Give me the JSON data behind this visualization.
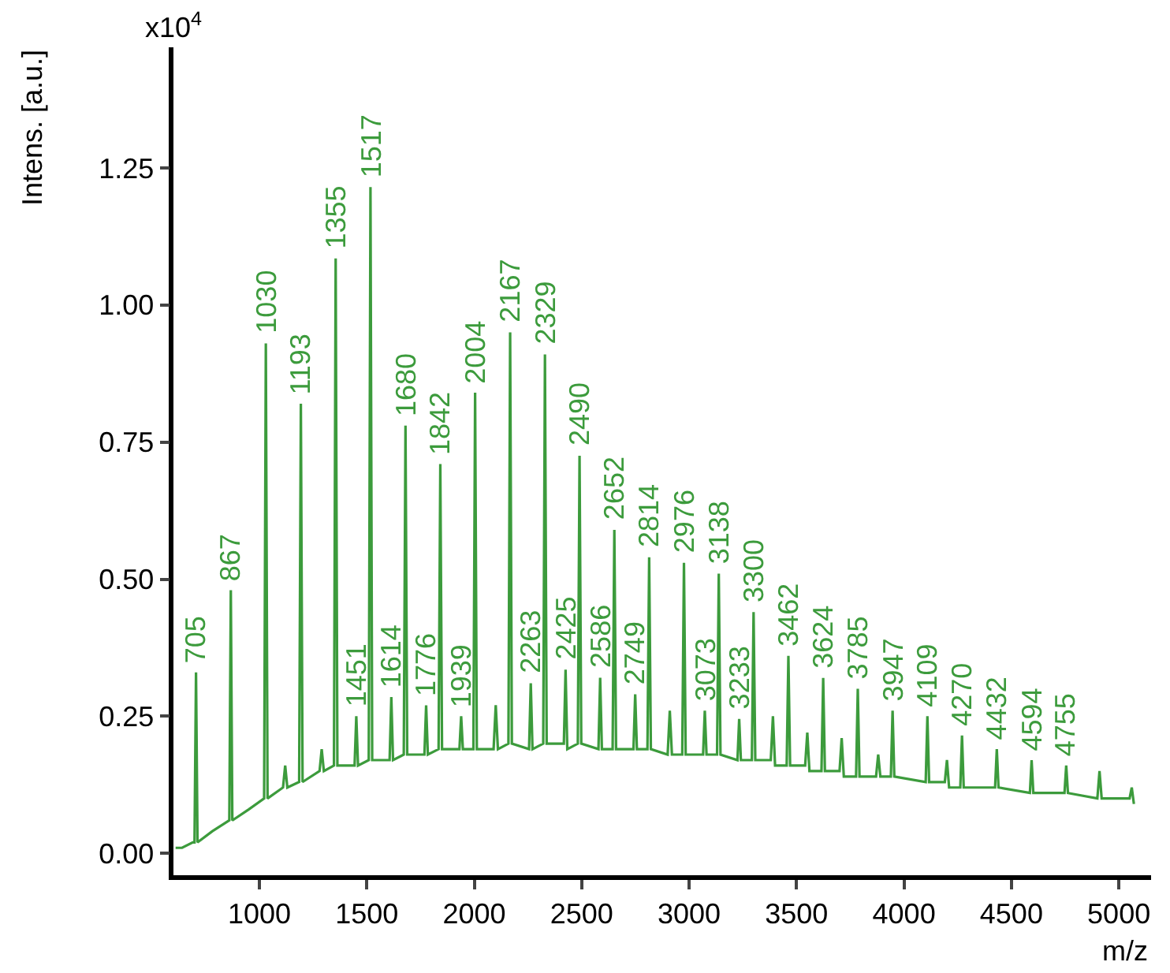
{
  "chart_data": {
    "type": "line",
    "xlabel": "m/z",
    "ylabel": "Intens. [a.u.]",
    "annotations": [
      "x10$^{4}$",
      {
        "text": "705",
        "x": 705,
        "y": 0.33
      },
      {
        "text": "867",
        "x": 867,
        "y": 0.48
      },
      {
        "text": "1030",
        "x": 1030,
        "y": 0.93
      },
      {
        "text": "1193",
        "x": 1193,
        "y": 0.82
      },
      {
        "text": "1355",
        "x": 1355,
        "y": 1.085
      },
      {
        "text": "1451",
        "x": 1451,
        "y": 0.25
      },
      {
        "text": "1517",
        "x": 1517,
        "y": 1.215
      },
      {
        "text": "1614",
        "x": 1614,
        "y": 0.285
      },
      {
        "text": "1680",
        "x": 1680,
        "y": 0.78
      },
      {
        "text": "1776",
        "x": 1776,
        "y": 0.27
      },
      {
        "text": "1842",
        "x": 1842,
        "y": 0.71
      },
      {
        "text": "1939",
        "x": 1939,
        "y": 0.25
      },
      {
        "text": "2004",
        "x": 2004,
        "y": 0.84
      },
      {
        "text": "2167",
        "x": 2167,
        "y": 0.95
      },
      {
        "text": "2263",
        "x": 2263,
        "y": 0.31
      },
      {
        "text": "2329",
        "x": 2329,
        "y": 0.91
      },
      {
        "text": "2425",
        "x": 2425,
        "y": 0.335
      },
      {
        "text": "2490",
        "x": 2490,
        "y": 0.725
      },
      {
        "text": "2586",
        "x": 2586,
        "y": 0.32
      },
      {
        "text": "2652",
        "x": 2652,
        "y": 0.59
      },
      {
        "text": "2749",
        "x": 2749,
        "y": 0.29
      },
      {
        "text": "2814",
        "x": 2814,
        "y": 0.54
      },
      {
        "text": "2976",
        "x": 2976,
        "y": 0.53
      },
      {
        "text": "3073",
        "x": 3073,
        "y": 0.26
      },
      {
        "text": "3138",
        "x": 3138,
        "y": 0.51
      },
      {
        "text": "3233",
        "x": 3233,
        "y": 0.245
      },
      {
        "text": "3300",
        "x": 3300,
        "y": 0.44
      },
      {
        "text": "3462",
        "x": 3462,
        "y": 0.36
      },
      {
        "text": "3624",
        "x": 3624,
        "y": 0.32
      },
      {
        "text": "3785",
        "x": 3785,
        "y": 0.3
      },
      {
        "text": "3947",
        "x": 3947,
        "y": 0.26
      },
      {
        "text": "4109",
        "x": 4109,
        "y": 0.25
      },
      {
        "text": "4270",
        "x": 4270,
        "y": 0.215
      },
      {
        "text": "4432",
        "x": 4432,
        "y": 0.19
      },
      {
        "text": "4594",
        "x": 4594,
        "y": 0.17
      },
      {
        "text": "4755",
        "x": 4755,
        "y": 0.16
      }
    ],
    "series": [
      {
        "color": "#3c9b3c",
        "x": [
          610,
          640,
          690,
          698,
          705,
          712,
          780,
          860,
          867,
          874,
          950,
          1022,
          1030,
          1038,
          1110,
          1120,
          1130,
          1185,
          1193,
          1201,
          1280,
          1290,
          1300,
          1347,
          1355,
          1363,
          1443,
          1451,
          1459,
          1509,
          1517,
          1525,
          1606,
          1614,
          1622,
          1672,
          1680,
          1688,
          1768,
          1776,
          1784,
          1834,
          1842,
          1850,
          1931,
          1939,
          1947,
          1996,
          2004,
          2012,
          2090,
          2100,
          2110,
          2159,
          2167,
          2175,
          2255,
          2263,
          2271,
          2321,
          2329,
          2337,
          2417,
          2425,
          2433,
          2482,
          2490,
          2498,
          2578,
          2586,
          2594,
          2644,
          2652,
          2660,
          2741,
          2749,
          2757,
          2806,
          2814,
          2822,
          2900,
          2910,
          2920,
          2968,
          2976,
          2984,
          3065,
          3073,
          3081,
          3130,
          3138,
          3146,
          3225,
          3233,
          3241,
          3292,
          3300,
          3308,
          3380,
          3390,
          3400,
          3454,
          3462,
          3470,
          3540,
          3550,
          3560,
          3616,
          3624,
          3632,
          3700,
          3710,
          3720,
          3777,
          3785,
          3793,
          3870,
          3880,
          3890,
          3939,
          3947,
          3955,
          4101,
          4109,
          4117,
          4190,
          4200,
          4210,
          4262,
          4270,
          4278,
          4424,
          4432,
          4440,
          4586,
          4594,
          4602,
          4747,
          4755,
          4763,
          4900,
          4910,
          4920,
          5050,
          5060,
          5070
        ],
        "values": [
          0.01,
          0.01,
          0.02,
          0.02,
          0.33,
          0.02,
          0.04,
          0.06,
          0.48,
          0.06,
          0.08,
          0.1,
          0.93,
          0.1,
          0.12,
          0.16,
          0.12,
          0.13,
          0.82,
          0.13,
          0.15,
          0.19,
          0.15,
          0.16,
          1.085,
          0.16,
          0.16,
          0.25,
          0.16,
          0.17,
          1.215,
          0.17,
          0.17,
          0.285,
          0.17,
          0.18,
          0.78,
          0.18,
          0.18,
          0.27,
          0.18,
          0.19,
          0.71,
          0.19,
          0.19,
          0.25,
          0.19,
          0.19,
          0.84,
          0.19,
          0.19,
          0.27,
          0.19,
          0.2,
          0.95,
          0.2,
          0.19,
          0.31,
          0.19,
          0.2,
          0.91,
          0.2,
          0.2,
          0.335,
          0.19,
          0.2,
          0.725,
          0.2,
          0.19,
          0.32,
          0.19,
          0.19,
          0.59,
          0.19,
          0.19,
          0.29,
          0.19,
          0.19,
          0.54,
          0.19,
          0.18,
          0.26,
          0.18,
          0.18,
          0.53,
          0.18,
          0.18,
          0.26,
          0.18,
          0.18,
          0.51,
          0.18,
          0.17,
          0.245,
          0.17,
          0.17,
          0.44,
          0.17,
          0.17,
          0.25,
          0.16,
          0.16,
          0.36,
          0.16,
          0.16,
          0.22,
          0.15,
          0.15,
          0.32,
          0.15,
          0.15,
          0.21,
          0.14,
          0.14,
          0.3,
          0.14,
          0.14,
          0.18,
          0.14,
          0.14,
          0.26,
          0.14,
          0.13,
          0.25,
          0.13,
          0.13,
          0.17,
          0.12,
          0.12,
          0.215,
          0.12,
          0.12,
          0.19,
          0.12,
          0.11,
          0.17,
          0.11,
          0.11,
          0.16,
          0.11,
          0.1,
          0.15,
          0.1,
          0.1,
          0.12,
          0.09
        ]
      }
    ],
    "xlim": [
      600,
      5150
    ],
    "xticks": [
      1000,
      1500,
      2000,
      2500,
      3000,
      3500,
      4000,
      4500,
      5000
    ],
    "ylim": [
      -0.04,
      1.47
    ],
    "yticks": [
      {
        "value": 0,
        "label": "0.00"
      },
      {
        "value": 0.25,
        "label": "0.25"
      },
      {
        "value": 0.5,
        "label": "0.50"
      },
      {
        "value": 0.75,
        "label": "0.75"
      },
      {
        "value": 1,
        "label": "1.00"
      },
      {
        "value": 1.25,
        "label": "1.25"
      }
    ],
    "marker": "none",
    "line_style": "solid"
  }
}
